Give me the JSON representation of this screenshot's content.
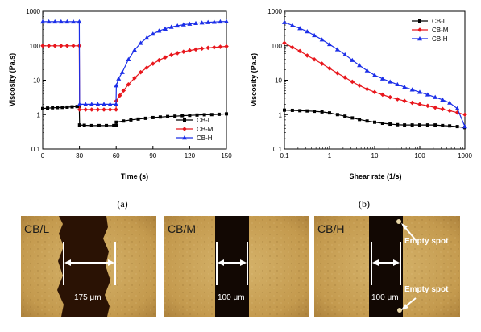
{
  "chart_data": [
    {
      "type": "line",
      "panel": "(a)",
      "xlabel": "Time (s)",
      "ylabel": "Viscosity (Pa.s)",
      "xlim": [
        0,
        150
      ],
      "ylim": [
        0.1,
        1000
      ],
      "yscale": "log",
      "xticks": [
        "0",
        "30",
        "60",
        "90",
        "120",
        "150"
      ],
      "yticks": [
        "0.1",
        "1",
        "10",
        "100",
        "1000"
      ],
      "legend_position": "bottom-right",
      "series": [
        {
          "name": "CB-L",
          "color": "#000000",
          "marker": "square",
          "x": [
            0,
            4,
            8,
            12,
            16,
            20,
            24,
            28,
            29.9,
            30.1,
            34,
            40,
            46,
            52,
            58,
            59.9,
            60.1,
            66,
            72,
            78,
            84,
            90,
            96,
            102,
            108,
            114,
            120,
            126,
            132,
            138,
            144,
            150
          ],
          "y": [
            1.5,
            1.55,
            1.58,
            1.6,
            1.62,
            1.65,
            1.68,
            1.72,
            1.75,
            0.5,
            0.49,
            0.48,
            0.48,
            0.48,
            0.48,
            0.48,
            0.6,
            0.65,
            0.7,
            0.74,
            0.78,
            0.82,
            0.85,
            0.88,
            0.9,
            0.93,
            0.95,
            0.97,
            0.99,
            1.0,
            1.02,
            1.05
          ]
        },
        {
          "name": "CB-M",
          "color": "#e8161c",
          "marker": "diamond",
          "x": [
            0,
            5,
            10,
            15,
            20,
            25,
            29.9,
            30.1,
            35,
            40,
            45,
            50,
            55,
            59.9,
            60.1,
            63,
            66,
            70,
            75,
            80,
            85,
            90,
            95,
            100,
            105,
            110,
            115,
            120,
            125,
            130,
            135,
            140,
            145,
            150
          ],
          "y": [
            100,
            100,
            100,
            100,
            100,
            100,
            100,
            1.4,
            1.4,
            1.4,
            1.4,
            1.4,
            1.4,
            1.4,
            2.5,
            3.6,
            5,
            7.5,
            11.5,
            17,
            23,
            30,
            38,
            46,
            54,
            61,
            67,
            73,
            78,
            83,
            87,
            90,
            93,
            96
          ]
        },
        {
          "name": "CB-H",
          "color": "#1b2ee8",
          "marker": "triangle",
          "x": [
            0,
            5,
            10,
            15,
            20,
            25,
            29.9,
            30.1,
            35,
            40,
            45,
            50,
            55,
            59.9,
            60.1,
            62,
            65,
            70,
            75,
            80,
            85,
            90,
            95,
            100,
            105,
            110,
            115,
            120,
            125,
            130,
            135,
            140,
            145,
            150
          ],
          "y": [
            500,
            500,
            500,
            500,
            500,
            500,
            500,
            2,
            2,
            2,
            2,
            2,
            2,
            2,
            7,
            11,
            17,
            40,
            75,
            120,
            170,
            220,
            270,
            310,
            350,
            380,
            410,
            430,
            450,
            465,
            480,
            490,
            500,
            505
          ]
        }
      ]
    },
    {
      "type": "line",
      "panel": "(b)",
      "xlabel": "Shear rate (1/s)",
      "ylabel": "Viscosity (Pa.s)",
      "xlim": [
        0.1,
        1000
      ],
      "ylim": [
        0.1,
        1000
      ],
      "xscale": "log",
      "yscale": "log",
      "xticks": [
        "0.1",
        "1",
        "10",
        "100",
        "1000"
      ],
      "yticks": [
        "0.1",
        "1",
        "10",
        "100",
        "1000"
      ],
      "legend_position": "top-right",
      "series": [
        {
          "name": "CB-L",
          "color": "#000000",
          "marker": "square",
          "x": [
            0.1,
            0.15,
            0.22,
            0.32,
            0.46,
            0.68,
            1,
            1.5,
            2.2,
            3.2,
            4.6,
            6.8,
            10,
            15,
            22,
            32,
            46,
            68,
            100,
            150,
            220,
            320,
            460,
            680,
            1000
          ],
          "y": [
            1.35,
            1.33,
            1.3,
            1.28,
            1.25,
            1.2,
            1.12,
            1.0,
            0.9,
            0.8,
            0.72,
            0.65,
            0.6,
            0.56,
            0.53,
            0.51,
            0.5,
            0.5,
            0.5,
            0.5,
            0.5,
            0.48,
            0.47,
            0.45,
            0.42
          ]
        },
        {
          "name": "CB-M",
          "color": "#e8161c",
          "marker": "diamond",
          "x": [
            0.1,
            0.15,
            0.22,
            0.32,
            0.46,
            0.68,
            1,
            1.5,
            2.2,
            3.2,
            4.6,
            6.8,
            10,
            15,
            22,
            32,
            46,
            68,
            100,
            150,
            220,
            320,
            460,
            680,
            1000
          ],
          "y": [
            120,
            90,
            70,
            52,
            40,
            30,
            22,
            16,
            12,
            9,
            7,
            5.5,
            4.5,
            3.8,
            3.2,
            2.8,
            2.5,
            2.2,
            2.0,
            1.8,
            1.6,
            1.45,
            1.3,
            1.15,
            1.0
          ]
        },
        {
          "name": "CB-H",
          "color": "#1b2ee8",
          "marker": "triangle",
          "x": [
            0.1,
            0.15,
            0.22,
            0.32,
            0.46,
            0.68,
            1,
            1.5,
            2.2,
            3.2,
            4.6,
            6.8,
            10,
            15,
            22,
            32,
            46,
            68,
            100,
            150,
            220,
            320,
            460,
            680,
            1000
          ],
          "y": [
            480,
            390,
            320,
            260,
            200,
            150,
            110,
            78,
            55,
            38,
            27,
            19,
            14,
            11,
            9,
            7.5,
            6.3,
            5.3,
            4.5,
            3.8,
            3.2,
            2.7,
            2.2,
            1.5,
            0.45
          ]
        }
      ]
    }
  ],
  "captions": {
    "a": "(a)",
    "b": "(b)"
  },
  "micrographs": [
    {
      "label": "CB/L",
      "width_text": "175 μm"
    },
    {
      "label": "CB/M",
      "width_text": "100 μm"
    },
    {
      "label": "CB/H",
      "width_text": "100 μm",
      "annotations": [
        "Empty spot",
        "Empty spot"
      ]
    }
  ]
}
